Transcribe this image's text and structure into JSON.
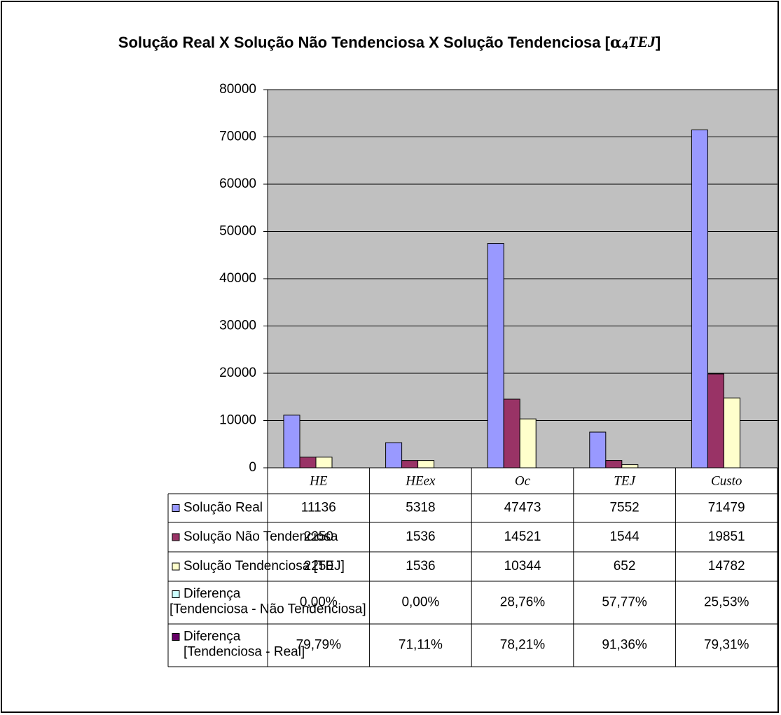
{
  "chart_data": {
    "type": "bar",
    "title": [
      "Solução Real X Solução Não Tendenciosa X Solução Tendenciosa [",
      "α",
      "4",
      "TEJ",
      "]"
    ],
    "categories": [
      "HE",
      "HEex",
      "Oc",
      "TEJ",
      "Custo"
    ],
    "series": [
      {
        "name": "Solução Real",
        "color": "#9999ff",
        "values": [
          11136,
          5318,
          47473,
          7552,
          71479
        ]
      },
      {
        "name": "Solução Não Tendenciosa",
        "color": "#993366",
        "values": [
          2250,
          1536,
          14521,
          1544,
          19851
        ]
      },
      {
        "name": "Solução Tendenciosa [TEJ]",
        "color": "#ffffcc",
        "values": [
          2250,
          1536,
          10344,
          652,
          14782
        ]
      }
    ],
    "table_rows": [
      {
        "name": [
          "Diferença",
          "[Tendenciosa - Não Tendenciosa]"
        ],
        "color": "#ccffff",
        "values": [
          "0,00%",
          "0,00%",
          "28,76%",
          "57,77%",
          "25,53%"
        ]
      },
      {
        "name": [
          "Diferença",
          "[Tendenciosa - Real]"
        ],
        "color": "#660066",
        "values": [
          "79,79%",
          "71,11%",
          "78,21%",
          "91,36%",
          "79,31%"
        ]
      }
    ],
    "ylim": [
      0,
      80000
    ],
    "yticks": [
      0,
      10000,
      20000,
      30000,
      40000,
      50000,
      60000,
      70000,
      80000
    ],
    "grid": true,
    "plot_color": "#c0c0c0"
  }
}
